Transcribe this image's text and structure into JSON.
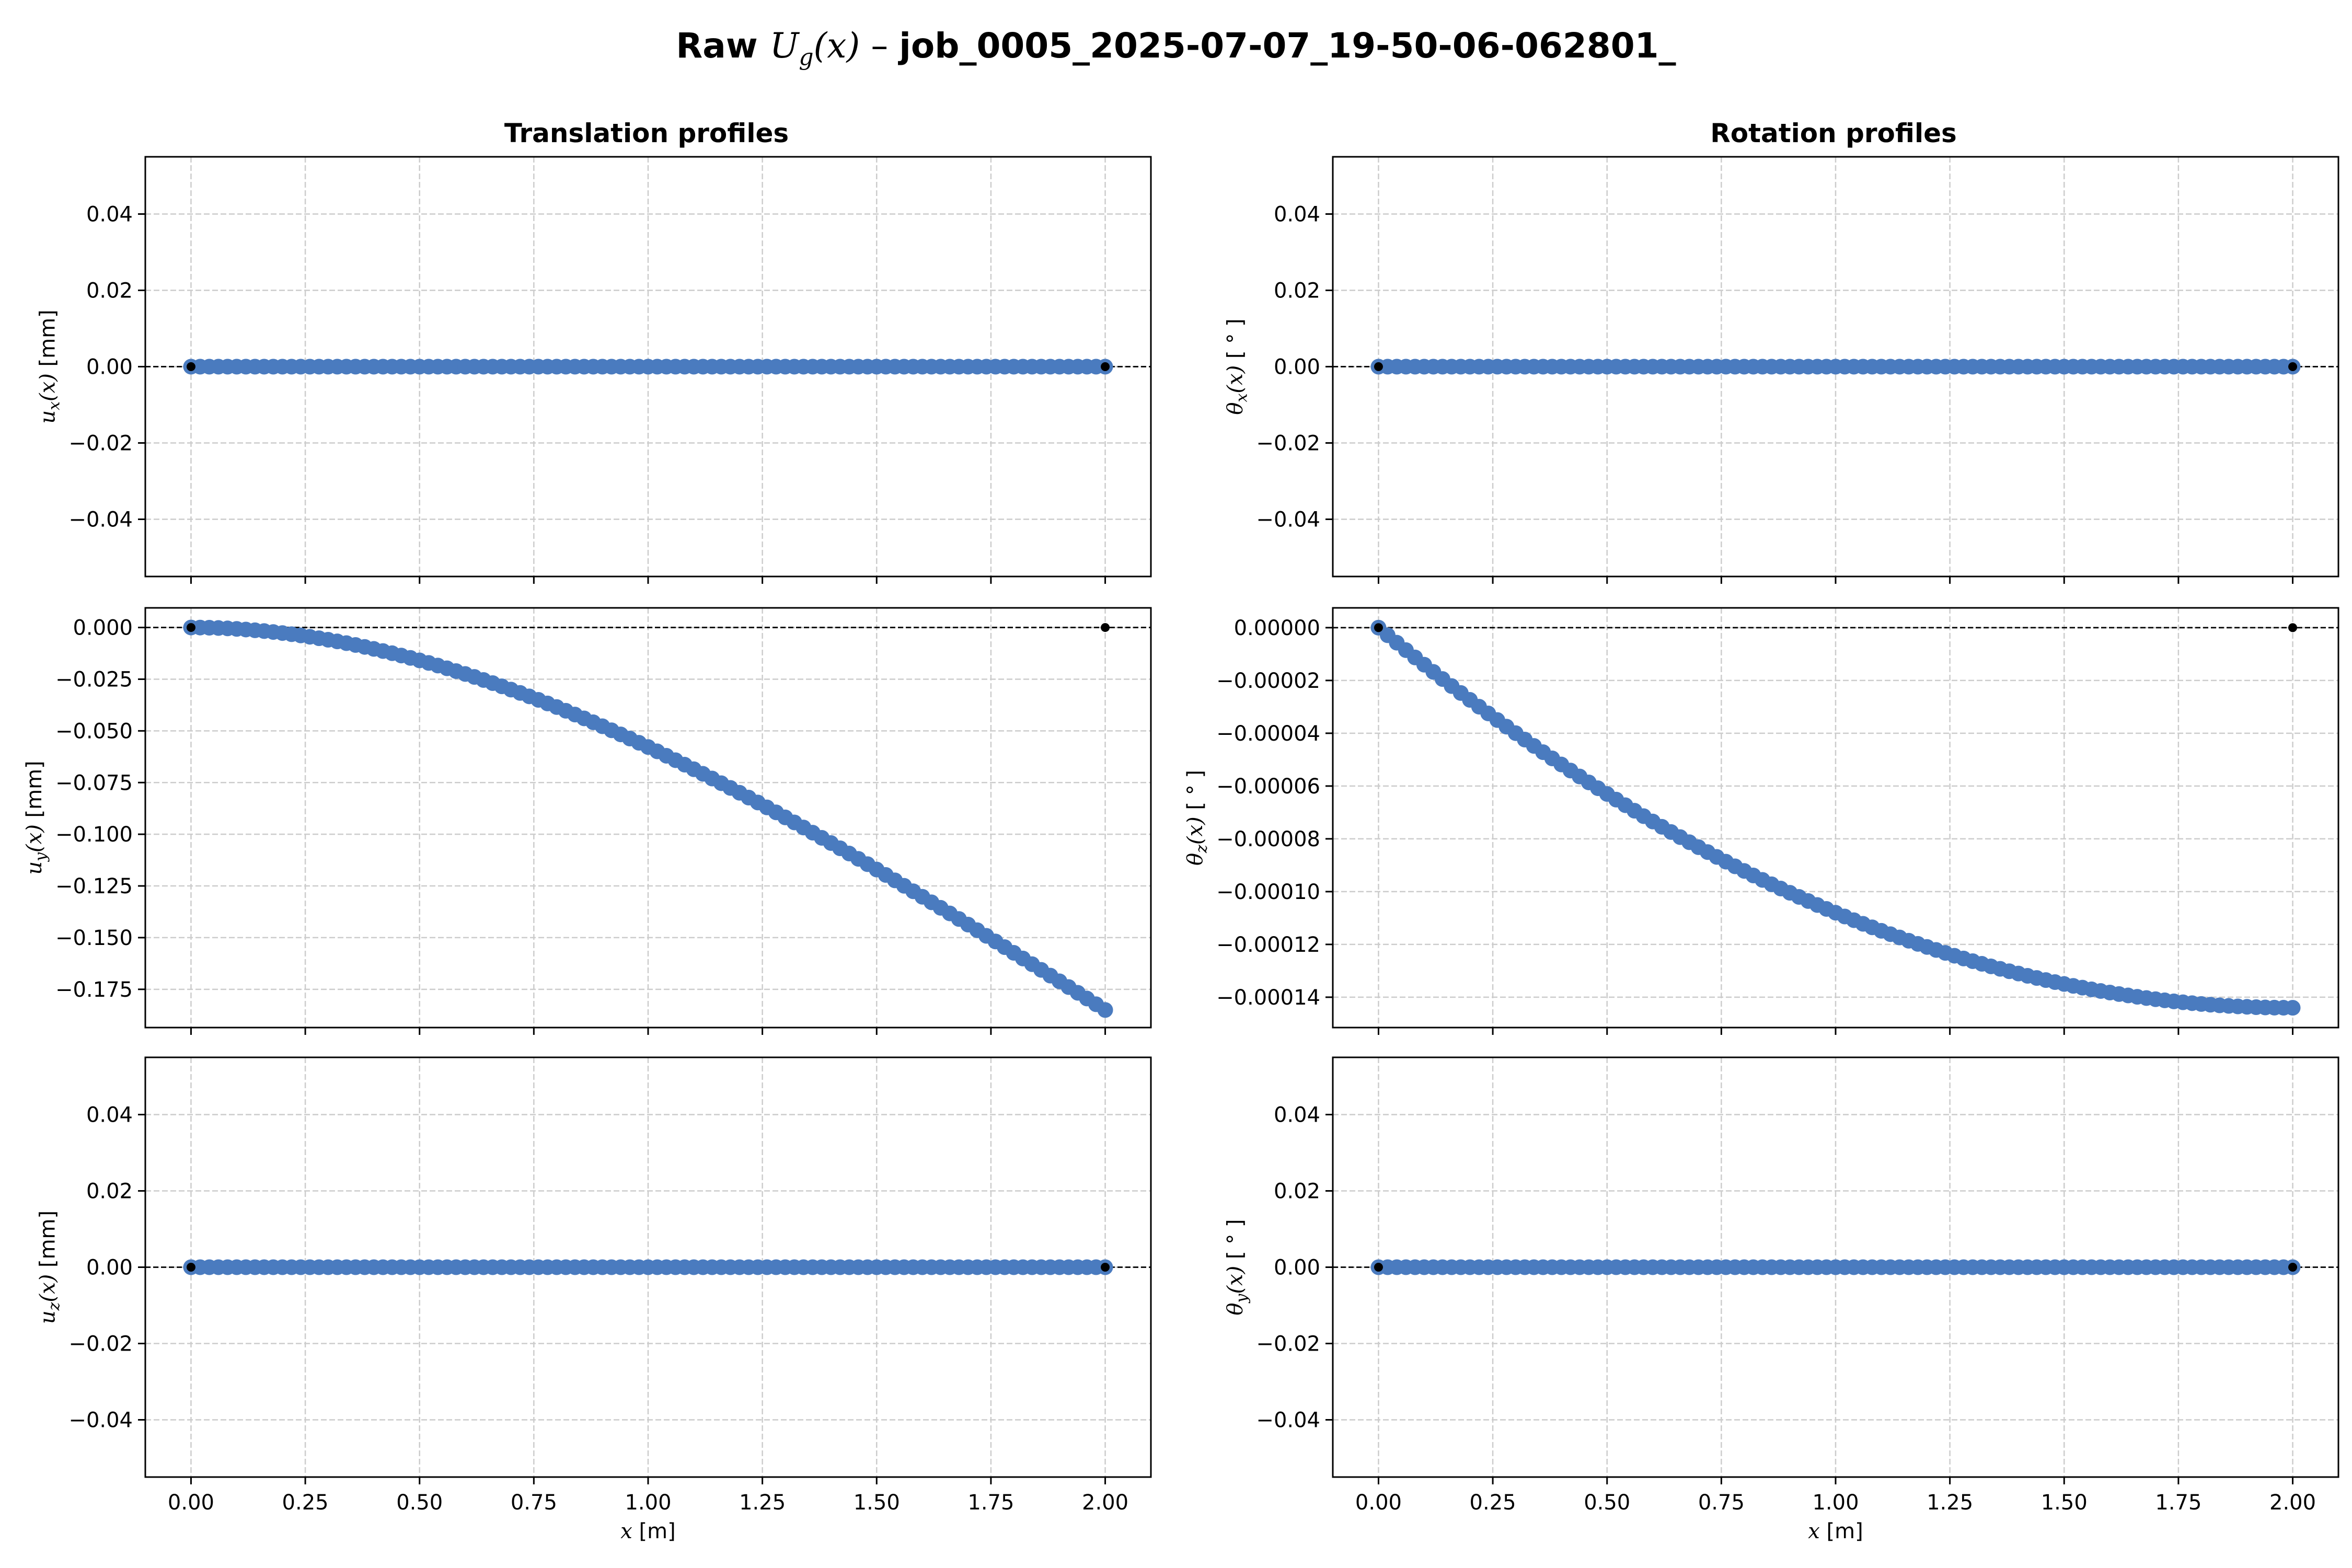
{
  "figure": {
    "title_prefix": "Raw ",
    "title_symbol": "U",
    "title_symbol_sub": "g",
    "title_symbol_arg": "(x)",
    "title_sep": " – ",
    "title_job": "job_0005_2025-07-07_19-50-06-062801_",
    "col_titles": [
      "Translation profiles",
      "Rotation profiles"
    ],
    "colors": {
      "series": "#4a7bbf",
      "reference": "#000000",
      "grid": "#cccccc"
    }
  },
  "chart_data": [
    {
      "id": "ux",
      "type": "scatter",
      "row": 0,
      "col": 0,
      "ylabel": {
        "sym": "u",
        "sub": "x",
        "arg": "(x)",
        "unit": " [mm]"
      },
      "ylim": [
        -0.055,
        0.055
      ],
      "yticks": [
        -0.04,
        -0.02,
        0.0,
        0.02,
        0.04
      ],
      "ytick_labels": [
        "−0.04",
        "−0.02",
        "0.00",
        "0.02",
        "0.04"
      ],
      "xlim": [
        -0.1,
        2.1
      ],
      "xticks": [
        0,
        0.25,
        0.5,
        0.75,
        1.0,
        1.25,
        1.5,
        1.75,
        2.0
      ],
      "xtick_labels": [
        "0.00",
        "0.25",
        "0.50",
        "0.75",
        "1.00",
        "1.25",
        "1.50",
        "1.75",
        "2.00"
      ],
      "show_xticklabels": false,
      "n_points": 101,
      "x_range": [
        0,
        2
      ],
      "curve": "zero",
      "reference_points": [
        {
          "x": 0,
          "y": 0
        },
        {
          "x": 2,
          "y": 0
        }
      ],
      "grid": true
    },
    {
      "id": "uy",
      "type": "scatter",
      "row": 1,
      "col": 0,
      "ylabel": {
        "sym": "u",
        "sub": "y",
        "arg": "(x)",
        "unit": " [mm]"
      },
      "ylim": [
        -0.1935,
        0.0095
      ],
      "yticks": [
        -0.175,
        -0.15,
        -0.125,
        -0.1,
        -0.075,
        -0.05,
        -0.025,
        0.0
      ],
      "ytick_labels": [
        "−0.175",
        "−0.150",
        "−0.125",
        "−0.100",
        "−0.075",
        "−0.050",
        "−0.025",
        "0.000"
      ],
      "xlim": [
        -0.1,
        2.1
      ],
      "xticks": [
        0,
        0.25,
        0.5,
        0.75,
        1.0,
        1.25,
        1.5,
        1.75,
        2.0
      ],
      "xtick_labels": [
        "0.00",
        "0.25",
        "0.50",
        "0.75",
        "1.00",
        "1.25",
        "1.50",
        "1.75",
        "2.00"
      ],
      "show_xticklabels": false,
      "n_points": 101,
      "x_range": [
        0,
        2
      ],
      "curve": "cubic_deflection",
      "end_value": -0.185,
      "reference_points": [
        {
          "x": 0,
          "y": 0
        },
        {
          "x": 2,
          "y": 0
        }
      ],
      "grid": true
    },
    {
      "id": "uz",
      "type": "scatter",
      "row": 2,
      "col": 0,
      "ylabel": {
        "sym": "u",
        "sub": "z",
        "arg": "(x)",
        "unit": " [mm]"
      },
      "ylim": [
        -0.055,
        0.055
      ],
      "yticks": [
        -0.04,
        -0.02,
        0.0,
        0.02,
        0.04
      ],
      "ytick_labels": [
        "−0.04",
        "−0.02",
        "0.00",
        "0.02",
        "0.04"
      ],
      "xlim": [
        -0.1,
        2.1
      ],
      "xticks": [
        0,
        0.25,
        0.5,
        0.75,
        1.0,
        1.25,
        1.5,
        1.75,
        2.0
      ],
      "xtick_labels": [
        "0.00",
        "0.25",
        "0.50",
        "0.75",
        "1.00",
        "1.25",
        "1.50",
        "1.75",
        "2.00"
      ],
      "show_xticklabels": true,
      "xlabel": {
        "sym": "x",
        "unit": " [m]"
      },
      "n_points": 101,
      "x_range": [
        0,
        2
      ],
      "curve": "zero",
      "reference_points": [
        {
          "x": 0,
          "y": 0
        },
        {
          "x": 2,
          "y": 0
        }
      ],
      "grid": true
    },
    {
      "id": "thx",
      "type": "scatter",
      "row": 0,
      "col": 1,
      "ylabel": {
        "sym": "θ",
        "sub": "x",
        "arg": "(x)",
        "unit": " [ ° ]"
      },
      "ylim": [
        -0.055,
        0.055
      ],
      "yticks": [
        -0.04,
        -0.02,
        0.0,
        0.02,
        0.04
      ],
      "ytick_labels": [
        "−0.04",
        "−0.02",
        "0.00",
        "0.02",
        "0.04"
      ],
      "xlim": [
        -0.1,
        2.1
      ],
      "xticks": [
        0,
        0.25,
        0.5,
        0.75,
        1.0,
        1.25,
        1.5,
        1.75,
        2.0
      ],
      "xtick_labels": [
        "0.00",
        "0.25",
        "0.50",
        "0.75",
        "1.00",
        "1.25",
        "1.50",
        "1.75",
        "2.00"
      ],
      "show_xticklabels": false,
      "n_points": 101,
      "x_range": [
        0,
        2
      ],
      "curve": "zero",
      "reference_points": [
        {
          "x": 0,
          "y": 0
        },
        {
          "x": 2,
          "y": 0
        }
      ],
      "grid": true
    },
    {
      "id": "thz",
      "type": "scatter",
      "row": 1,
      "col": 1,
      "ylabel": {
        "sym": "θ",
        "sub": "z",
        "arg": "(x)",
        "unit": " [ ° ]"
      },
      "ylim": [
        -0.0001515,
        7.5e-06
      ],
      "yticks": [
        -0.00014,
        -0.00012,
        -0.0001,
        -8e-05,
        -6e-05,
        -4e-05,
        -2e-05,
        0.0
      ],
      "ytick_labels": [
        "−0.00014",
        "−0.00012",
        "−0.00010",
        "−0.00008",
        "−0.00006",
        "−0.00004",
        "−0.00002",
        "0.00000"
      ],
      "xlim": [
        -0.1,
        2.1
      ],
      "xticks": [
        0,
        0.25,
        0.5,
        0.75,
        1.0,
        1.25,
        1.5,
        1.75,
        2.0
      ],
      "xtick_labels": [
        "0.00",
        "0.25",
        "0.50",
        "0.75",
        "1.00",
        "1.25",
        "1.50",
        "1.75",
        "2.00"
      ],
      "show_xticklabels": false,
      "n_points": 101,
      "x_range": [
        0,
        2
      ],
      "curve": "cantilever_rotation",
      "end_value": -0.000144,
      "reference_points": [
        {
          "x": 0,
          "y": 0
        },
        {
          "x": 2,
          "y": 0
        }
      ],
      "grid": true
    },
    {
      "id": "thy",
      "type": "scatter",
      "row": 2,
      "col": 1,
      "ylabel": {
        "sym": "θ",
        "sub": "y",
        "arg": "(x)",
        "unit": " [ ° ]"
      },
      "ylim": [
        -0.055,
        0.055
      ],
      "yticks": [
        -0.04,
        -0.02,
        0.0,
        0.02,
        0.04
      ],
      "ytick_labels": [
        "−0.04",
        "−0.02",
        "0.00",
        "0.02",
        "0.04"
      ],
      "xlim": [
        -0.1,
        2.1
      ],
      "xticks": [
        0,
        0.25,
        0.5,
        0.75,
        1.0,
        1.25,
        1.5,
        1.75,
        2.0
      ],
      "xtick_labels": [
        "0.00",
        "0.25",
        "0.50",
        "0.75",
        "1.00",
        "1.25",
        "1.50",
        "1.75",
        "2.00"
      ],
      "show_xticklabels": true,
      "xlabel": {
        "sym": "x",
        "unit": " [m]"
      },
      "n_points": 101,
      "x_range": [
        0,
        2
      ],
      "curve": "zero",
      "reference_points": [
        {
          "x": 0,
          "y": 0
        },
        {
          "x": 2,
          "y": 0
        }
      ],
      "grid": true
    }
  ]
}
